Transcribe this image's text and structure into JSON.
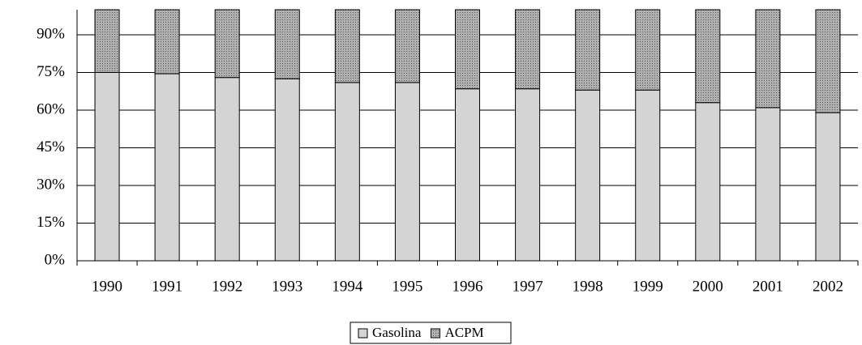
{
  "chart_data": {
    "type": "stacked_bar",
    "categories": [
      "1990",
      "1991",
      "1992",
      "1993",
      "1994",
      "1995",
      "1996",
      "1997",
      "1998",
      "1999",
      "2000",
      "2001",
      "2002"
    ],
    "series": [
      {
        "name": "Gasolina",
        "color": "#d4d4d4",
        "values": [
          75,
          74.5,
          73,
          72.5,
          71,
          71,
          68.5,
          68.5,
          68,
          68,
          63,
          61,
          59
        ]
      },
      {
        "name": "ACPM",
        "color": "#9a9a9a",
        "values": [
          25,
          25.5,
          27,
          27.5,
          29,
          29,
          31.5,
          31.5,
          32,
          32,
          37,
          39,
          41
        ]
      }
    ],
    "ylim": [
      0,
      100
    ],
    "yticks": [
      {
        "value": 0,
        "label": "0%"
      },
      {
        "value": 15,
        "label": "15%"
      },
      {
        "value": 30,
        "label": "30%"
      },
      {
        "value": 45,
        "label": "45%"
      },
      {
        "value": 60,
        "label": "60%"
      },
      {
        "value": 75,
        "label": "75%"
      },
      {
        "value": 90,
        "label": "90%"
      }
    ],
    "grid": true,
    "legend": "bottom"
  }
}
